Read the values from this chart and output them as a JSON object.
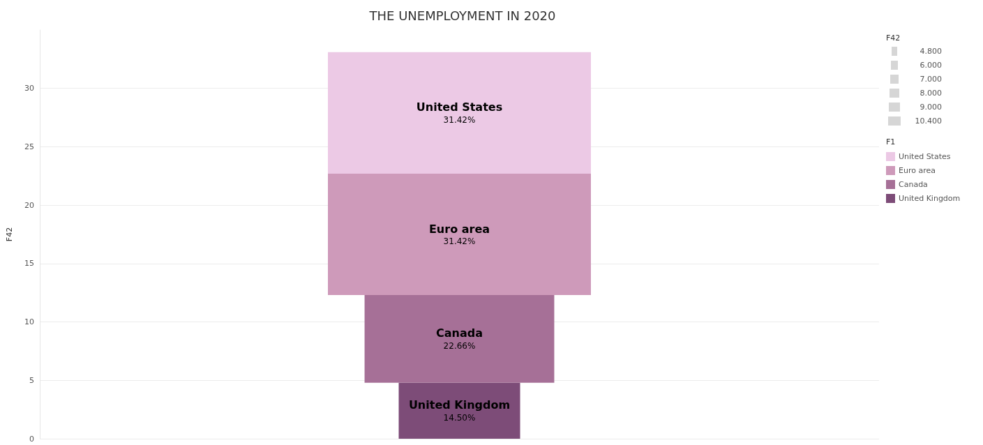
{
  "chart_data": {
    "type": "bar",
    "title": "THE UNEMPLOYMENT IN 2020",
    "ylabel": "F42",
    "legend_title": "F1",
    "categories": [
      null
    ],
    "stacked": true,
    "grid": "y",
    "legend": "top right",
    "tick_labels": "y",
    "ylim": [
      0,
      35
    ],
    "yticks": [
      0,
      5,
      10,
      15,
      20,
      25,
      30
    ],
    "annotations": [
      "14.50%",
      "22.66%",
      "31.42%",
      "31.42%",
      "4.800",
      "6.000",
      "7.000",
      "8.000",
      "9.000",
      "10.400"
    ],
    "series": [
      {
        "name": "United Kingdom",
        "color": "#7d4c78",
        "values": [
          4.8
        ]
      },
      {
        "name": "Canada",
        "color": "#a67097",
        "values": [
          7.5
        ]
      },
      {
        "name": "Euro area",
        "color": "#ce9aba",
        "values": [
          10.4
        ]
      },
      {
        "name": "United States",
        "color": "#ecc9e5",
        "values": [
          10.4
        ]
      }
    ]
  }
}
